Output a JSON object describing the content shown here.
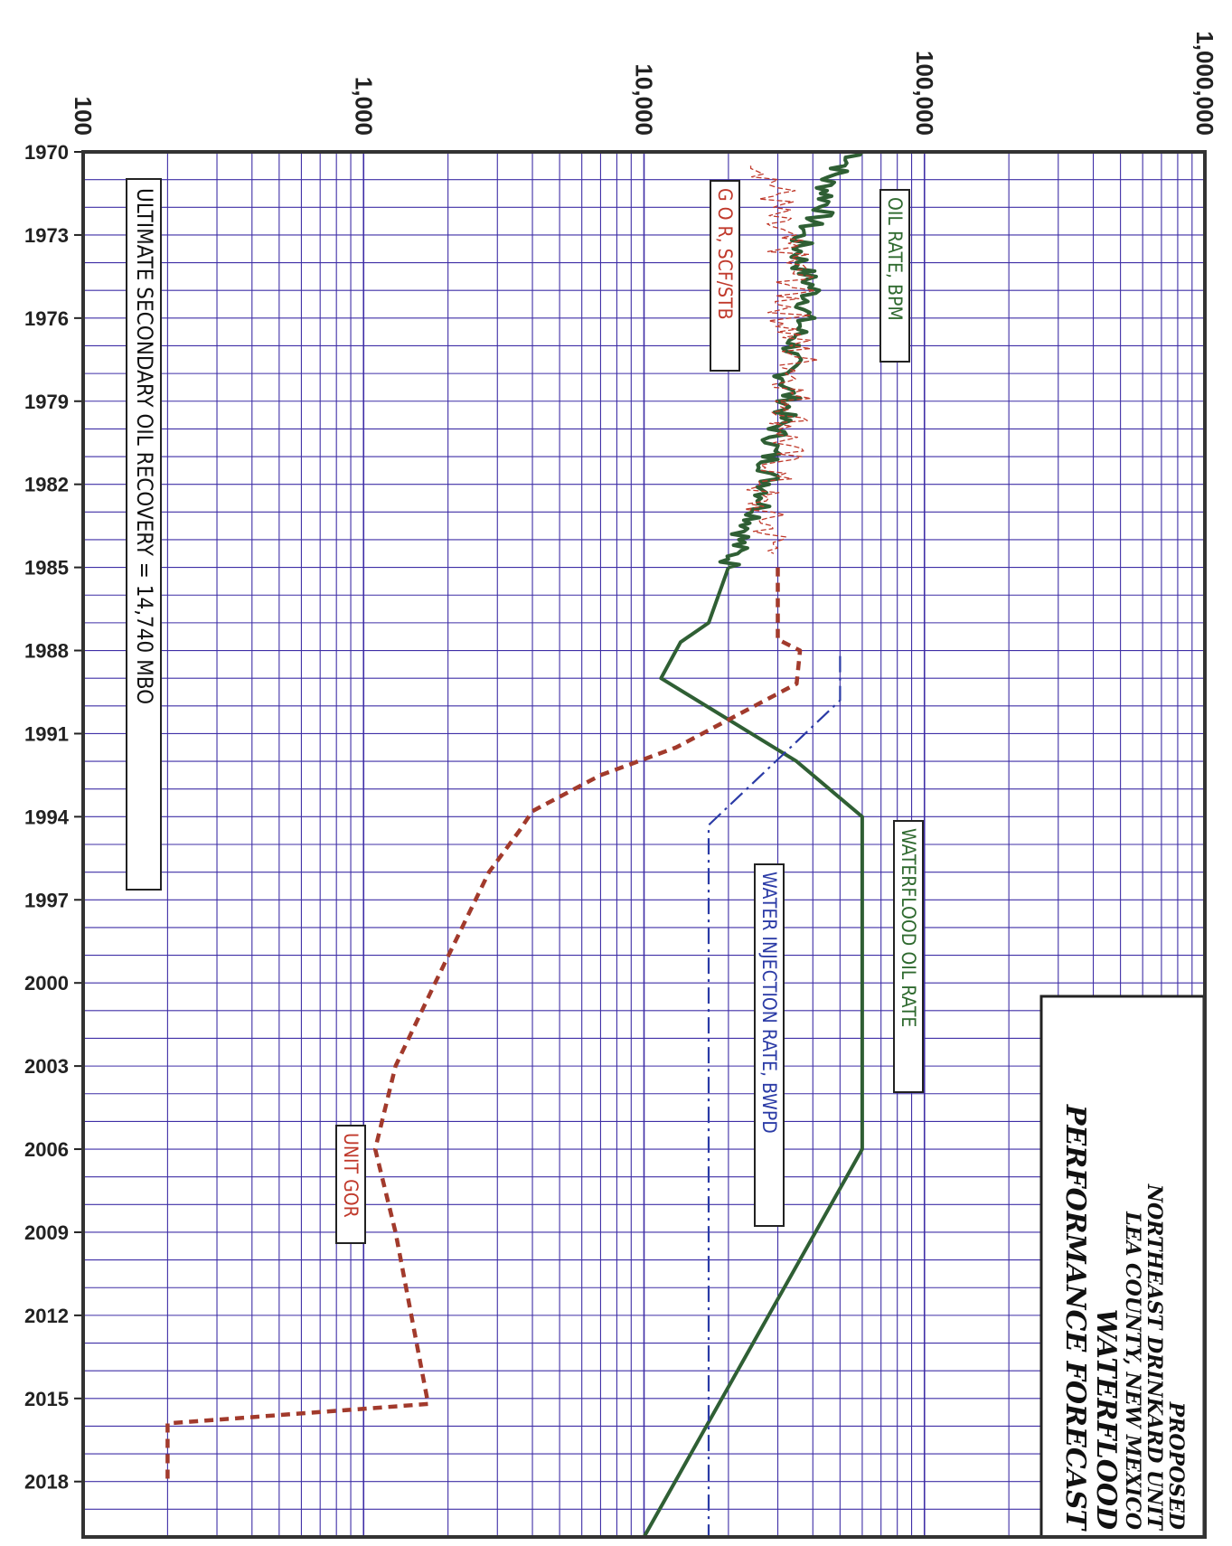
{
  "chart_data": {
    "type": "line",
    "x_axis": {
      "scale": "log",
      "range": [
        100,
        1000000
      ],
      "tick_labels": [
        "100",
        "1,000",
        "10,000",
        "100,000",
        "1,000,000"
      ],
      "tick_values": [
        100,
        1000,
        10000,
        100000,
        1000000
      ]
    },
    "y_axis": {
      "scale": "linear (years)",
      "range": [
        1970,
        2020
      ],
      "tick_labels": [
        "1970",
        "1973",
        "1976",
        "1979",
        "1982",
        "1985",
        "1988",
        "1991",
        "1994",
        "1997",
        "2000",
        "2003",
        "2006",
        "2009",
        "2012",
        "2015",
        "2018"
      ],
      "tick_values": [
        1970,
        1973,
        1976,
        1979,
        1982,
        1985,
        1988,
        1991,
        1994,
        1997,
        2000,
        2003,
        2006,
        2009,
        2012,
        2015,
        2018
      ]
    },
    "grid": true,
    "grid_color": "#3f2fa6",
    "series": [
      {
        "name": "OIL RATE, BPM",
        "color": "#2f5f34",
        "style": "solid-noisy",
        "points": [
          [
            1970,
            60000
          ],
          [
            1971,
            45000
          ],
          [
            1972,
            45000
          ],
          [
            1973,
            36000
          ],
          [
            1974,
            36000
          ],
          [
            1975,
            40000
          ],
          [
            1976,
            37000
          ],
          [
            1977,
            34000
          ],
          [
            1978,
            32000
          ],
          [
            1979,
            33000
          ],
          [
            1980,
            30000
          ],
          [
            1981,
            28000
          ],
          [
            1982,
            28000
          ],
          [
            1983,
            26000
          ],
          [
            1984,
            22000
          ],
          [
            1985,
            20000
          ]
        ]
      },
      {
        "name": "G O R, SCF/STB",
        "color": "#c0392b",
        "style": "thin-noisy",
        "points": [
          [
            1970.5,
            28000
          ],
          [
            1971.5,
            30000
          ],
          [
            1972.5,
            28000
          ],
          [
            1973.5,
            32000
          ],
          [
            1974.5,
            35000
          ],
          [
            1975.5,
            33000
          ],
          [
            1976.5,
            33000
          ],
          [
            1977.5,
            36000
          ],
          [
            1978.5,
            34000
          ],
          [
            1979.5,
            34000
          ],
          [
            1980.5,
            32000
          ],
          [
            1981.5,
            30000
          ],
          [
            1982.5,
            25000
          ],
          [
            1983.5,
            28000
          ],
          [
            1984.5,
            29000
          ]
        ]
      },
      {
        "name": "WATERFLOOD OIL RATE",
        "color": "#2f5f34",
        "style": "solid",
        "points": [
          [
            1985,
            20000
          ],
          [
            1987,
            17000
          ],
          [
            1987.7,
            13500
          ],
          [
            1989,
            11500
          ],
          [
            1992,
            35000
          ],
          [
            1994,
            60000
          ],
          [
            2006,
            60000
          ],
          [
            2020,
            10000
          ]
        ]
      },
      {
        "name": "UNIT GOR",
        "color": "#a23a2c",
        "style": "dashed",
        "points": [
          [
            1985,
            30000
          ],
          [
            1987.6,
            30000
          ],
          [
            1988,
            36000
          ],
          [
            1989.2,
            35000
          ],
          [
            1989.8,
            27000
          ],
          [
            1990.5,
            20000
          ],
          [
            1991.5,
            13000
          ],
          [
            1992.5,
            7000
          ],
          [
            1993.8,
            4000
          ],
          [
            1994.5,
            3600
          ],
          [
            1996,
            2800
          ],
          [
            2000,
            1800
          ],
          [
            2003,
            1300
          ],
          [
            2006,
            1100
          ],
          [
            2009,
            1300
          ],
          [
            2015.2,
            1700
          ],
          [
            2015.9,
            200
          ],
          [
            2018,
            200
          ]
        ]
      },
      {
        "name": "WATER INJECTION RATE, BWPD",
        "color": "#2b3ba6",
        "style": "dash-dot",
        "points": [
          [
            1988.2,
            50000
          ],
          [
            1989.8,
            50000
          ],
          [
            1994.3,
            17000
          ],
          [
            2020,
            17000
          ]
        ]
      }
    ],
    "annotations": [
      "OIL RATE, BPM",
      "G O R, SCF/STB",
      "WATERFLOOD OIL RATE",
      "WATER INJECTION RATE, BWPD",
      "UNIT GOR",
      "ULTIMATE SECONDARY OIL RECOVERY = 14,740 MBO"
    ],
    "title_block": {
      "line1": "PROPOSED",
      "line2": "NORTHEAST DRINKARD UNIT",
      "line3": "LEA COUNTY, NEW MEXICO",
      "line4": "WATERFLOOD",
      "line5": "PERFORMANCE FORECAST"
    }
  }
}
